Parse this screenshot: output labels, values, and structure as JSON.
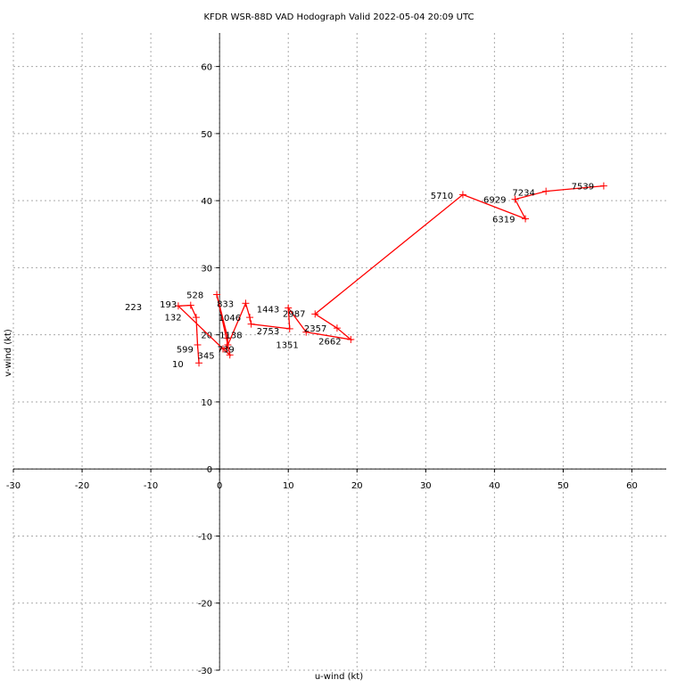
{
  "chart_data": {
    "type": "line",
    "title": "KFDR WSR-88D VAD Hodograph Valid 2022-05-04 20:09 UTC",
    "xlabel": "u-wind (kt)",
    "ylabel": "v-wind (kt)",
    "xlim": [
      -30,
      65
    ],
    "ylim": [
      -30,
      65
    ],
    "xticks": [
      -30,
      -20,
      -10,
      0,
      10,
      20,
      30,
      40,
      50,
      60
    ],
    "yticks": [
      -30,
      -20,
      -10,
      0,
      10,
      20,
      30,
      40,
      50,
      60
    ],
    "grid": true,
    "series_color": "#ff0000",
    "points": [
      {
        "u": -3.0,
        "v": 15.8
      },
      {
        "u": -3.2,
        "v": 18.5
      },
      {
        "u": -3.4,
        "v": 22.6
      },
      {
        "u": -4.2,
        "v": 24.4
      },
      {
        "u": -6.0,
        "v": 24.3
      },
      {
        "u": 0.5,
        "v": 17.9
      },
      {
        "u": 1.5,
        "v": 17.0
      },
      {
        "u": 1.2,
        "v": 18.5
      },
      {
        "u": -0.4,
        "v": 26.0
      },
      {
        "u": 1.2,
        "v": 19.5
      },
      {
        "u": 1.0,
        "v": 18.0
      },
      {
        "u": 3.8,
        "v": 24.7
      },
      {
        "u": 4.4,
        "v": 22.6
      },
      {
        "u": 4.6,
        "v": 21.6
      },
      {
        "u": 10.2,
        "v": 20.9
      },
      {
        "u": 10.0,
        "v": 24.0
      },
      {
        "u": 12.6,
        "v": 20.4
      },
      {
        "u": 19.1,
        "v": 19.3
      },
      {
        "u": 17.1,
        "v": 21.0
      },
      {
        "u": 13.9,
        "v": 23.1
      },
      {
        "u": 35.4,
        "v": 40.9
      },
      {
        "u": 44.5,
        "v": 37.3
      },
      {
        "u": 43.0,
        "v": 40.2
      },
      {
        "u": 47.5,
        "v": 41.4
      },
      {
        "u": 55.9,
        "v": 42.2
      }
    ],
    "annotations": [
      {
        "text": "10",
        "u": -6.9,
        "v": 15.7
      },
      {
        "text": "345",
        "u": -3.2,
        "v": 17.0
      },
      {
        "text": "599",
        "u": -2.9,
        "v": 17.9
      },
      {
        "text": "739",
        "u": -3.7,
        "v": 17.9
      },
      {
        "text": "132",
        "u": -8.0,
        "v": 22.7
      },
      {
        "text": "193",
        "u": -8.7,
        "v": 24.6
      },
      {
        "text": "223",
        "u": -10.4,
        "v": 24.2
      },
      {
        "text": "528",
        "u": -4.8,
        "v": 26.0
      },
      {
        "text": "833",
        "u": -0.4,
        "v": 24.7
      },
      {
        "text": "1046",
        "u": -0.2,
        "v": 22.6
      },
      {
        "text": "1138",
        "u": 0.0,
        "v": 21.5
      },
      {
        "text": "1443",
        "u": 5.4,
        "v": 23.9
      },
      {
        "text": "2987",
        "u": 9.2,
        "v": 23.2
      },
      {
        "text": "2357",
        "u": 12.3,
        "v": 21.0
      },
      {
        "text": "2753",
        "u": 5.4,
        "v": 20.6
      },
      {
        "text": "1351",
        "u": 8.2,
        "v": 20.0
      },
      {
        "text": "2662",
        "u": 14.4,
        "v": 19.1
      },
      {
        "text": "5710",
        "u": 30.7,
        "v": 40.8
      },
      {
        "text": "6929",
        "u": 38.4,
        "v": 40.2
      },
      {
        "text": "6319",
        "u": 39.7,
        "v": 37.3
      },
      {
        "text": "7234",
        "u": 42.6,
        "v": 41.3
      },
      {
        "text": "7539",
        "u": 51.2,
        "v": 42.2
      }
    ]
  }
}
